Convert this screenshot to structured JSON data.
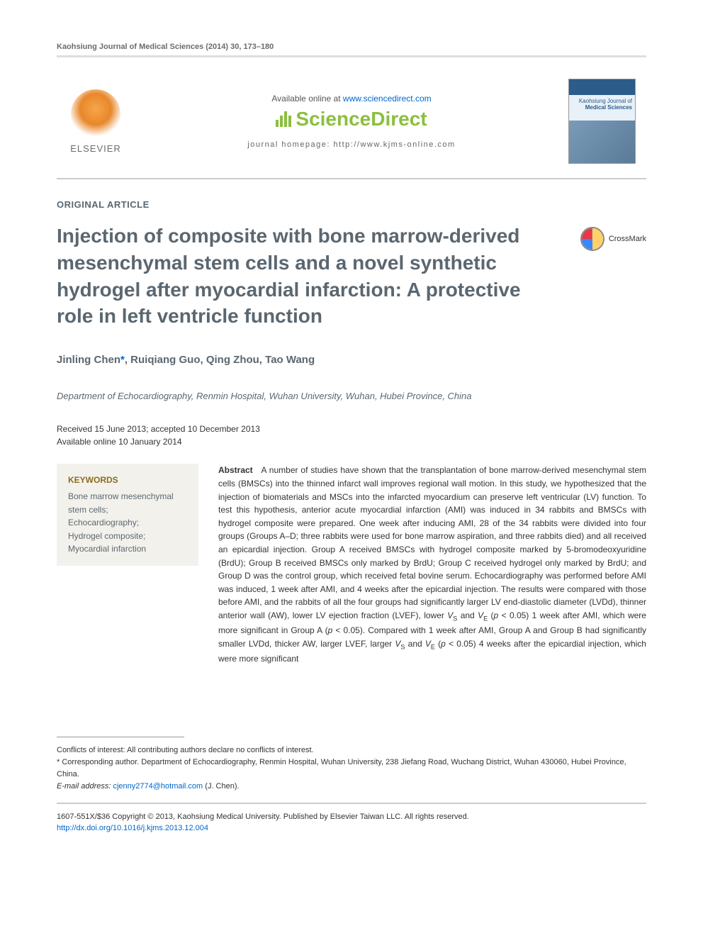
{
  "citation": "Kaohsiung Journal of Medical Sciences (2014) 30, 173–180",
  "header": {
    "available_prefix": "Available online at ",
    "available_link": "www.sciencedirect.com",
    "brand": "ScienceDirect",
    "homepage_label": "journal homepage: http://www.kjms-online.com",
    "elsevier": "ELSEVIER",
    "cover_journal_prefix": "Kaohsiung Journal of",
    "cover_journal_name": "Medical Sciences"
  },
  "article": {
    "type": "ORIGINAL ARTICLE",
    "title": "Injection of composite with bone marrow-derived mesenchymal stem cells and a novel synthetic hydrogel after myocardial infarction: A protective role in left ventricle function",
    "crossmark": "CrossMark",
    "authors_html": "Jinling Chen*, Ruiqiang Guo, Qing Zhou, Tao Wang",
    "author_prefix": "Jinling Chen",
    "author_rest": ", Ruiqiang Guo, Qing Zhou, Tao Wang",
    "affiliation": "Department of Echocardiography, Renmin Hospital, Wuhan University, Wuhan, Hubei Province, China",
    "dates_line1": "Received 15 June 2013; accepted 10 December 2013",
    "dates_line2": "Available online 10 January 2014"
  },
  "keywords": {
    "heading": "KEYWORDS",
    "items": "Bone marrow mesenchymal stem cells;\nEchocardiography;\nHydrogel composite;\nMyocardial infarction"
  },
  "abstract": {
    "label": "Abstract",
    "body": "A number of studies have shown that the transplantation of bone marrow-derived mesenchymal stem cells (BMSCs) into the thinned infarct wall improves regional wall motion. In this study, we hypothesized that the injection of biomaterials and MSCs into the infarcted myocardium can preserve left ventricular (LV) function. To test this hypothesis, anterior acute myocardial infarction (AMI) was induced in 34 rabbits and BMSCs with hydrogel composite were prepared. One week after inducing AMI, 28 of the 34 rabbits were divided into four groups (Groups A–D; three rabbits were used for bone marrow aspiration, and three rabbits died) and all received an epicardial injection. Group A received BMSCs with hydrogel composite marked by 5-bromodeoxyuridine (BrdU); Group B received BMSCs only marked by BrdU; Group C received hydrogel only marked by BrdU; and Group D was the control group, which received fetal bovine serum. Echocardiography was performed before AMI was induced, 1 week after AMI, and 4 weeks after the epicardial injection. The results were compared with those before AMI, and the rabbits of all the four groups had significantly larger LV end-diastolic diameter (LVDd), thinner anterior wall (AW), lower LV ejection fraction (LVEF), lower Vs and VE (p < 0.05) 1 week after AMI, which were more significant in Group A (p < 0.05). Compared with 1 week after AMI, Group A and Group B had significantly smaller LVDd, thicker AW, larger LVEF, larger Vs and VE (p < 0.05) 4 weeks after the epicardial injection, which were more significant"
  },
  "footnotes": {
    "conflicts": "Conflicts of interest: All contributing authors declare no conflicts of interest.",
    "corresponding": "* Corresponding author. Department of Echocardiography, Renmin Hospital, Wuhan University, 238 Jiefang Road, Wuchang District, Wuhan 430060, Hubei Province, China.",
    "email_label": "E-mail address:",
    "email": "cjenny2774@hotmail.com",
    "email_suffix": " (J. Chen)."
  },
  "copyright": {
    "line1": "1607-551X/$36 Copyright © 2013, Kaohsiung Medical University. Published by Elsevier Taiwan LLC. All rights reserved.",
    "doi": "http://dx.doi.org/10.1016/j.kjms.2013.12.004"
  },
  "colors": {
    "muted": "#6b6b6b",
    "heading": "#5b6770",
    "link": "#0066cc",
    "brand_green": "#8bbf3f",
    "keyword_bg": "#f3f1ec",
    "keyword_gold": "#8a6d1f",
    "rule": "#cccccc"
  }
}
